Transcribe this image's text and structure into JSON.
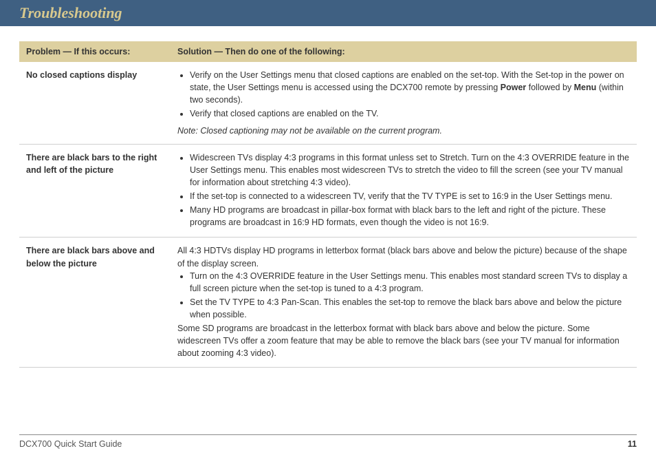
{
  "header": {
    "title": "Troubleshooting"
  },
  "table": {
    "head": {
      "problem": "Problem — If this occurs:",
      "solution": "Solution — Then do one of the following:"
    },
    "rows": [
      {
        "problem": "No closed captions display",
        "bullet1_pre": "Verify on the User Settings menu that closed captions are enabled on the set-top. With the Set-top in the power on state, the User Settings menu is accessed using the DCX700 remote by pressing ",
        "bullet1_bold1": "Power",
        "bullet1_mid": " followed by ",
        "bullet1_bold2": "Menu",
        "bullet1_post": " (within two seconds).",
        "bullet2": "Verify that closed captions are enabled on the TV.",
        "note": "Note: Closed captioning may not be available on the current program."
      },
      {
        "problem": "There are black bars to the right and left of the picture",
        "bullet1": "Widescreen TVs display 4:3 programs in this format unless set to Stretch. Turn on the 4:3 OVERRIDE feature in the User Settings menu. This enables most widescreen TVs to stretch the video to fill the screen (see your TV manual for information about stretching 4:3 video).",
        "bullet2": "If the set-top is connected to a widescreen TV, verify that the TV TYPE is set to 16:9 in the User Settings menu.",
        "bullet3": "Many HD programs are broadcast in pillar-box format with black bars to the left and right of the picture. These programs are broadcast in 16:9 HD formats, even though the video is not 16:9."
      },
      {
        "problem": "There are black bars above and below the picture",
        "intro": "All 4:3 HDTVs display HD programs in letterbox format (black bars above and below the picture) because of the shape of the display screen.",
        "bullet1": "Turn on the 4:3 OVERRIDE feature in the User Settings menu. This enables most standard screen TVs to display a full screen picture when the set-top is tuned to a 4:3 program.",
        "bullet2": "Set the TV TYPE to 4:3 Pan-Scan. This enables the set-top to remove the black bars above and below the picture when possible.",
        "outro": "Some SD programs are broadcast in the letterbox format with black bars above and below the picture. Some widescreen TVs offer a zoom feature that may be able to remove the black bars (see your TV manual for information about zooming 4:3 video)."
      }
    ]
  },
  "footer": {
    "doc": "DCX700 Quick Start Guide",
    "page": "11"
  },
  "colors": {
    "header_bg": "#3f6082",
    "header_text": "#d8c98e",
    "thead_bg": "#ddd0a0",
    "border": "#cfcfcf"
  }
}
